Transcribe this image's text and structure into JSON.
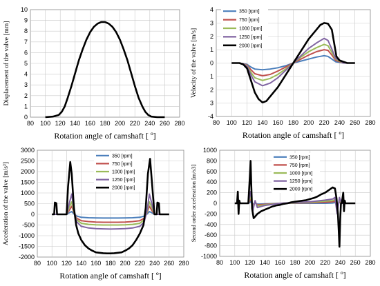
{
  "chart_data": [
    {
      "type": "line",
      "xlabel": "Rotation angle of camshaft [ º]",
      "ylabel": "Displacement of the valve [mm]",
      "xlim": [
        80,
        280
      ],
      "ylim": [
        0,
        10
      ],
      "xticks": [
        "80",
        "100",
        "120",
        "140",
        "160",
        "180",
        "200",
        "220",
        "240",
        "260",
        "280"
      ],
      "yticks": [
        "0",
        "1",
        "2",
        "3",
        "4",
        "5",
        "6",
        "7",
        "8",
        "9",
        "10"
      ],
      "grid": true,
      "legend": null,
      "series": [
        {
          "color": "#000000",
          "x": [
            100,
            110,
            118,
            122,
            126,
            130,
            135,
            140,
            145,
            150,
            155,
            160,
            165,
            170,
            175,
            180,
            185,
            190,
            195,
            200,
            205,
            210,
            215,
            220,
            225,
            230,
            234,
            238,
            242,
            250,
            260
          ],
          "y": [
            0,
            0.05,
            0.2,
            0.5,
            1.0,
            1.8,
            2.9,
            4.1,
            5.3,
            6.3,
            7.2,
            7.9,
            8.4,
            8.7,
            8.85,
            8.85,
            8.7,
            8.4,
            7.9,
            7.2,
            6.3,
            5.3,
            4.1,
            2.9,
            1.8,
            1.0,
            0.5,
            0.2,
            0.05,
            0,
            0
          ]
        }
      ]
    },
    {
      "type": "line",
      "xlabel": "Rotation angle of camshaft [ º]",
      "ylabel": "Velocity of the valve [m/s]",
      "xlim": [
        80,
        280
      ],
      "ylim": [
        -4,
        4
      ],
      "xticks": [
        "80",
        "100",
        "120",
        "140",
        "160",
        "180",
        "200",
        "220",
        "240",
        "260",
        "280"
      ],
      "yticks": [
        "-4",
        "3",
        "2",
        "1",
        "0",
        "1",
        "2",
        "3",
        "4"
      ],
      "grid": true,
      "legend": "top-left",
      "series": [
        {
          "name": "350 [rpm]",
          "color": "#4a7ebb",
          "x": [
            100,
            110,
            115,
            120,
            125,
            130,
            140,
            150,
            160,
            170,
            180,
            190,
            200,
            210,
            220,
            225,
            230,
            235,
            240,
            245,
            250,
            260
          ],
          "y": [
            0,
            0,
            -0.05,
            -0.1,
            -0.3,
            -0.45,
            -0.5,
            -0.45,
            -0.35,
            -0.2,
            0,
            0.15,
            0.3,
            0.45,
            0.55,
            0.5,
            0.3,
            0.1,
            0.05,
            0,
            0,
            0
          ]
        },
        {
          "name": "750 [rpm]",
          "color": "#c0504d",
          "x": [
            100,
            110,
            115,
            120,
            125,
            130,
            140,
            150,
            160,
            170,
            180,
            190,
            200,
            210,
            220,
            225,
            230,
            235,
            240,
            245,
            250,
            260
          ],
          "y": [
            0,
            0,
            -0.05,
            -0.15,
            -0.5,
            -0.8,
            -0.95,
            -0.85,
            -0.6,
            -0.3,
            0,
            0.3,
            0.6,
            0.85,
            1.0,
            0.95,
            0.6,
            0.2,
            0.1,
            0,
            0,
            0
          ]
        },
        {
          "name": "1000 [rpm]",
          "color": "#9bbb59",
          "x": [
            100,
            110,
            115,
            120,
            125,
            130,
            140,
            150,
            160,
            170,
            180,
            190,
            200,
            210,
            220,
            225,
            230,
            235,
            240,
            245,
            250,
            260
          ],
          "y": [
            0,
            0,
            -0.05,
            -0.2,
            -0.7,
            -1.1,
            -1.3,
            -1.15,
            -0.85,
            -0.45,
            0,
            0.45,
            0.85,
            1.15,
            1.4,
            1.3,
            0.8,
            0.3,
            0.15,
            0,
            0,
            0
          ]
        },
        {
          "name": "1250 [rpm]",
          "color": "#8064a2",
          "x": [
            100,
            110,
            115,
            120,
            125,
            130,
            140,
            150,
            160,
            170,
            180,
            190,
            200,
            210,
            220,
            225,
            230,
            235,
            240,
            245,
            250,
            260
          ],
          "y": [
            0,
            0,
            -0.05,
            -0.25,
            -0.9,
            -1.4,
            -1.7,
            -1.5,
            -1.1,
            -0.55,
            0,
            0.55,
            1.1,
            1.5,
            1.85,
            1.7,
            1.05,
            0.35,
            0.2,
            0,
            0,
            0
          ]
        },
        {
          "name": "2000 [rpm]",
          "color": "#000000",
          "x": [
            100,
            110,
            115,
            120,
            125,
            130,
            135,
            140,
            145,
            150,
            160,
            170,
            180,
            190,
            200,
            210,
            215,
            220,
            225,
            230,
            233,
            236,
            240,
            245,
            250,
            260
          ],
          "y": [
            0,
            0,
            -0.1,
            -0.4,
            -1.3,
            -2.2,
            -2.7,
            -2.95,
            -2.85,
            -2.5,
            -1.8,
            -0.9,
            0,
            0.9,
            1.8,
            2.5,
            2.85,
            3.0,
            2.95,
            2.5,
            1.5,
            0.5,
            0.2,
            0.1,
            0,
            0
          ]
        }
      ]
    },
    {
      "type": "line",
      "xlabel": "Rotation angle of camshaft [ º]",
      "ylabel": "Acceleration of the valve [m/s²]",
      "xlim": [
        80,
        280
      ],
      "ylim": [
        -2000,
        3000
      ],
      "xticks": [
        "80",
        "100",
        "120",
        "140",
        "160",
        "180",
        "200",
        "220",
        "240",
        "260",
        "280"
      ],
      "yticks": [
        "-2000",
        "-1500",
        "-1000",
        "-500",
        "0",
        "500",
        "1000",
        "1500",
        "2000",
        "2500",
        "3000"
      ],
      "grid": true,
      "legend": "top-center",
      "series": [
        {
          "name": "350 [rpm]",
          "color": "#4a7ebb",
          "x": [
            100,
            120,
            124,
            127,
            130,
            134,
            140,
            150,
            160,
            170,
            180,
            190,
            200,
            210,
            220,
            226,
            230,
            233,
            236,
            240,
            260
          ],
          "y": [
            0,
            0,
            80,
            130,
            20,
            -80,
            -140,
            -160,
            -170,
            -175,
            -175,
            -175,
            -170,
            -160,
            -140,
            -80,
            20,
            130,
            80,
            0,
            0
          ]
        },
        {
          "name": "750 [rpm]",
          "color": "#c0504d",
          "x": [
            100,
            120,
            124,
            127,
            130,
            134,
            140,
            150,
            160,
            170,
            180,
            190,
            200,
            210,
            220,
            226,
            230,
            233,
            236,
            240,
            260
          ],
          "y": [
            0,
            0,
            200,
            380,
            80,
            -180,
            -300,
            -340,
            -360,
            -370,
            -370,
            -370,
            -360,
            -340,
            -300,
            -180,
            80,
            380,
            200,
            0,
            0
          ]
        },
        {
          "name": "1000 [rpm]",
          "color": "#9bbb59",
          "x": [
            100,
            120,
            124,
            127,
            130,
            134,
            140,
            150,
            160,
            170,
            180,
            190,
            200,
            210,
            220,
            226,
            230,
            233,
            236,
            240,
            260
          ],
          "y": [
            0,
            0,
            350,
            580,
            120,
            -250,
            -420,
            -470,
            -490,
            -500,
            -500,
            -500,
            -490,
            -470,
            -420,
            -250,
            120,
            580,
            350,
            0,
            0
          ]
        },
        {
          "name": "1250 [rpm]",
          "color": "#8064a2",
          "x": [
            100,
            120,
            124,
            127,
            130,
            134,
            140,
            150,
            160,
            170,
            180,
            190,
            200,
            210,
            220,
            226,
            230,
            233,
            236,
            240,
            260
          ],
          "y": [
            0,
            0,
            550,
            950,
            200,
            -350,
            -560,
            -640,
            -670,
            -680,
            -690,
            -680,
            -670,
            -640,
            -560,
            -350,
            200,
            950,
            550,
            0,
            0
          ]
        },
        {
          "name": "2000 [rpm]",
          "color": "#000000",
          "x": [
            100,
            103,
            104,
            106,
            107,
            108,
            110,
            120,
            122,
            125,
            127,
            130,
            133,
            136,
            140,
            145,
            150,
            155,
            160,
            165,
            170,
            175,
            180,
            185,
            190,
            195,
            200,
            205,
            210,
            215,
            220,
            225,
            228,
            231,
            234,
            237,
            240,
            243,
            244,
            246,
            247,
            248,
            250,
            260
          ],
          "y": [
            0,
            0,
            550,
            520,
            0,
            0,
            0,
            0,
            1300,
            2450,
            1900,
            300,
            -500,
            -900,
            -1200,
            -1450,
            -1600,
            -1700,
            -1780,
            -1800,
            -1820,
            -1830,
            -1830,
            -1820,
            -1800,
            -1780,
            -1700,
            -1600,
            -1450,
            -1200,
            -900,
            -500,
            300,
            1900,
            2600,
            1300,
            0,
            0,
            550,
            520,
            0,
            0,
            0,
            0
          ]
        }
      ]
    },
    {
      "type": "line",
      "xlabel": "Rotation angle of camshaft [ º]",
      "ylabel": "Second order acceleration [m/s3]",
      "xlim": [
        80,
        280
      ],
      "ylim": [
        -1000,
        1000
      ],
      "xticks": [
        "80",
        "100",
        "120",
        "140",
        "160",
        "180",
        "200",
        "220",
        "240",
        "260",
        "280"
      ],
      "yticks": [
        "-1000",
        "-800",
        "-600",
        "-400",
        "-200",
        "0",
        "200",
        "400",
        "600",
        "800",
        "1000"
      ],
      "grid": true,
      "legend": "top-center",
      "series": [
        {
          "name": "350 [rpm]",
          "color": "#4a7ebb",
          "x": [
            100,
            118,
            121,
            124,
            127,
            130,
            140,
            160,
            180,
            200,
            220,
            230,
            233,
            236,
            239,
            242,
            260
          ],
          "y": [
            0,
            0,
            30,
            -20,
            10,
            -15,
            -10,
            0,
            0,
            0,
            0,
            5,
            15,
            -30,
            20,
            0,
            0
          ]
        },
        {
          "name": "750 [rpm]",
          "color": "#c0504d",
          "x": [
            100,
            118,
            121,
            124,
            127,
            130,
            140,
            160,
            180,
            200,
            220,
            230,
            233,
            236,
            239,
            242,
            260
          ],
          "y": [
            0,
            0,
            80,
            -50,
            20,
            -30,
            -20,
            0,
            5,
            10,
            20,
            30,
            40,
            -70,
            40,
            0,
            0
          ]
        },
        {
          "name": "1000 [rpm]",
          "color": "#9bbb59",
          "x": [
            100,
            118,
            121,
            124,
            127,
            130,
            140,
            160,
            180,
            200,
            220,
            230,
            233,
            236,
            239,
            242,
            260
          ],
          "y": [
            0,
            0,
            140,
            -90,
            30,
            -50,
            -30,
            0,
            10,
            20,
            40,
            50,
            70,
            -130,
            70,
            0,
            0
          ]
        },
        {
          "name": "1250 [rpm]",
          "color": "#8064a2",
          "x": [
            100,
            118,
            121,
            124,
            127,
            130,
            140,
            160,
            180,
            200,
            220,
            230,
            233,
            236,
            239,
            242,
            260
          ],
          "y": [
            0,
            0,
            220,
            -140,
            50,
            -80,
            -40,
            0,
            15,
            30,
            60,
            80,
            110,
            -200,
            110,
            0,
            0
          ]
        },
        {
          "name": "2000 [rpm]",
          "color": "#000000",
          "x": [
            100,
            103,
            104,
            105,
            106,
            107,
            110,
            118,
            120,
            121,
            122,
            123,
            125,
            127,
            130,
            135,
            140,
            145,
            150,
            155,
            160,
            165,
            170,
            175,
            180,
            185,
            190,
            195,
            200,
            205,
            210,
            215,
            220,
            225,
            230,
            233,
            235,
            237,
            238,
            239,
            240,
            241,
            242,
            244,
            245,
            246,
            247,
            248,
            250,
            260
          ],
          "y": [
            0,
            0,
            220,
            -200,
            50,
            0,
            0,
            0,
            500,
            800,
            300,
            -100,
            -280,
            -250,
            -200,
            -150,
            -120,
            -90,
            -60,
            -40,
            -30,
            -10,
            0,
            20,
            30,
            40,
            50,
            60,
            80,
            100,
            130,
            170,
            200,
            250,
            300,
            280,
            100,
            -200,
            -500,
            -820,
            -300,
            0,
            0,
            200,
            -150,
            50,
            0,
            0,
            0,
            0
          ]
        }
      ]
    }
  ]
}
